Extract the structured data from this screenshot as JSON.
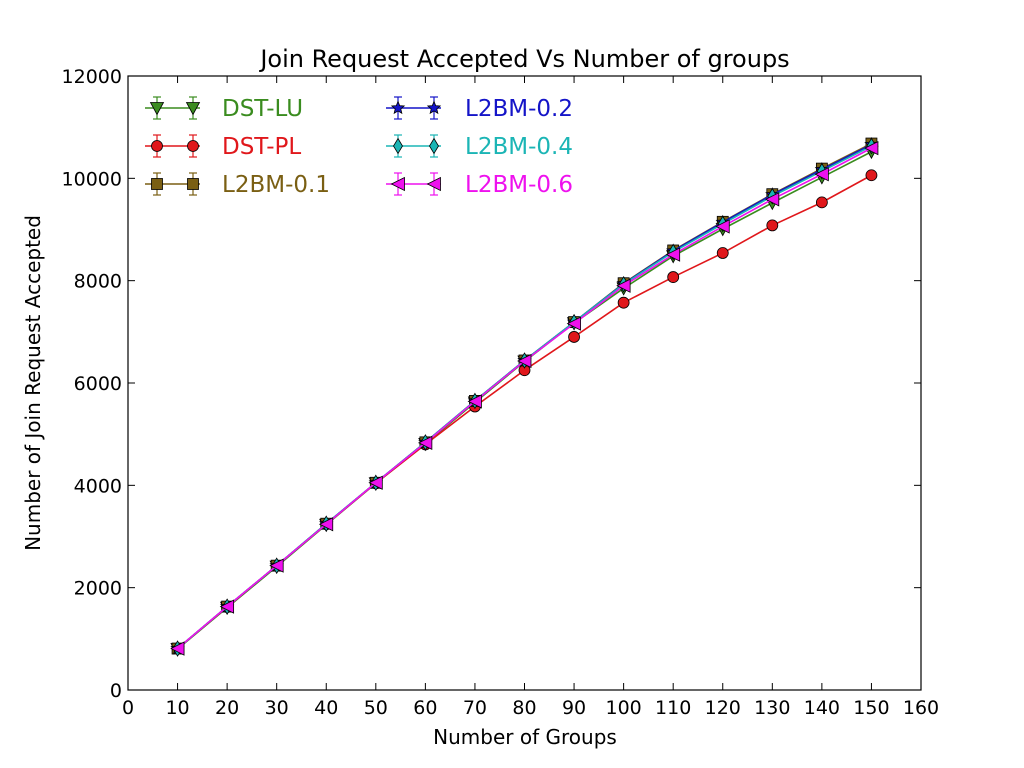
{
  "chart_data": {
    "type": "line",
    "title": "Join Request Accepted Vs Number of groups",
    "xlabel": "Number of Groups",
    "ylabel": "Number of Join Request Accepted",
    "xlim": [
      0,
      160
    ],
    "ylim": [
      0,
      12000
    ],
    "x_ticks": [
      "0",
      "10",
      "20",
      "30",
      "40",
      "50",
      "60",
      "70",
      "80",
      "90",
      "100",
      "110",
      "120",
      "130",
      "140",
      "150",
      "160"
    ],
    "y_ticks": [
      "0",
      "2000",
      "4000",
      "6000",
      "8000",
      "10000",
      "12000"
    ],
    "grid": false,
    "legend_position": "top-left",
    "x": [
      10,
      20,
      30,
      40,
      50,
      60,
      70,
      80,
      90,
      100,
      110,
      120,
      130,
      140,
      150
    ],
    "series": [
      {
        "name": "DST-LU",
        "color": "#3a8c1f",
        "marker": "triangle-down",
        "values": [
          800,
          1610,
          2410,
          3230,
          4040,
          4810,
          5620,
          6420,
          7170,
          7850,
          8480,
          9010,
          9520,
          10020,
          10520
        ]
      },
      {
        "name": "DST-PL",
        "color": "#e0171b",
        "marker": "circle",
        "values": [
          810,
          1620,
          2430,
          3240,
          4040,
          4800,
          5540,
          6250,
          6900,
          7570,
          8070,
          8540,
          9080,
          9530,
          10060
        ]
      },
      {
        "name": "L2BM-0.1",
        "color": "#7a5f13",
        "marker": "square",
        "values": [
          810,
          1630,
          2430,
          3250,
          4050,
          4840,
          5650,
          6440,
          7190,
          7950,
          8590,
          9150,
          9690,
          10190,
          10680
        ]
      },
      {
        "name": "L2BM-0.2",
        "color": "#1414c8",
        "marker": "star",
        "values": [
          810,
          1630,
          2430,
          3250,
          4050,
          4840,
          5650,
          6440,
          7190,
          7940,
          8580,
          9140,
          9680,
          10170,
          10660
        ]
      },
      {
        "name": "L2BM-0.4",
        "color": "#1bb5b5",
        "marker": "diamond",
        "values": [
          810,
          1630,
          2430,
          3250,
          4050,
          4840,
          5650,
          6440,
          7190,
          7930,
          8560,
          9110,
          9650,
          10140,
          10630
        ]
      },
      {
        "name": "L2BM-0.6",
        "color": "#ee11ee",
        "marker": "triangle-left",
        "values": [
          810,
          1630,
          2430,
          3240,
          4050,
          4830,
          5640,
          6430,
          7160,
          7900,
          8510,
          9060,
          9590,
          10080,
          10590
        ]
      }
    ]
  }
}
